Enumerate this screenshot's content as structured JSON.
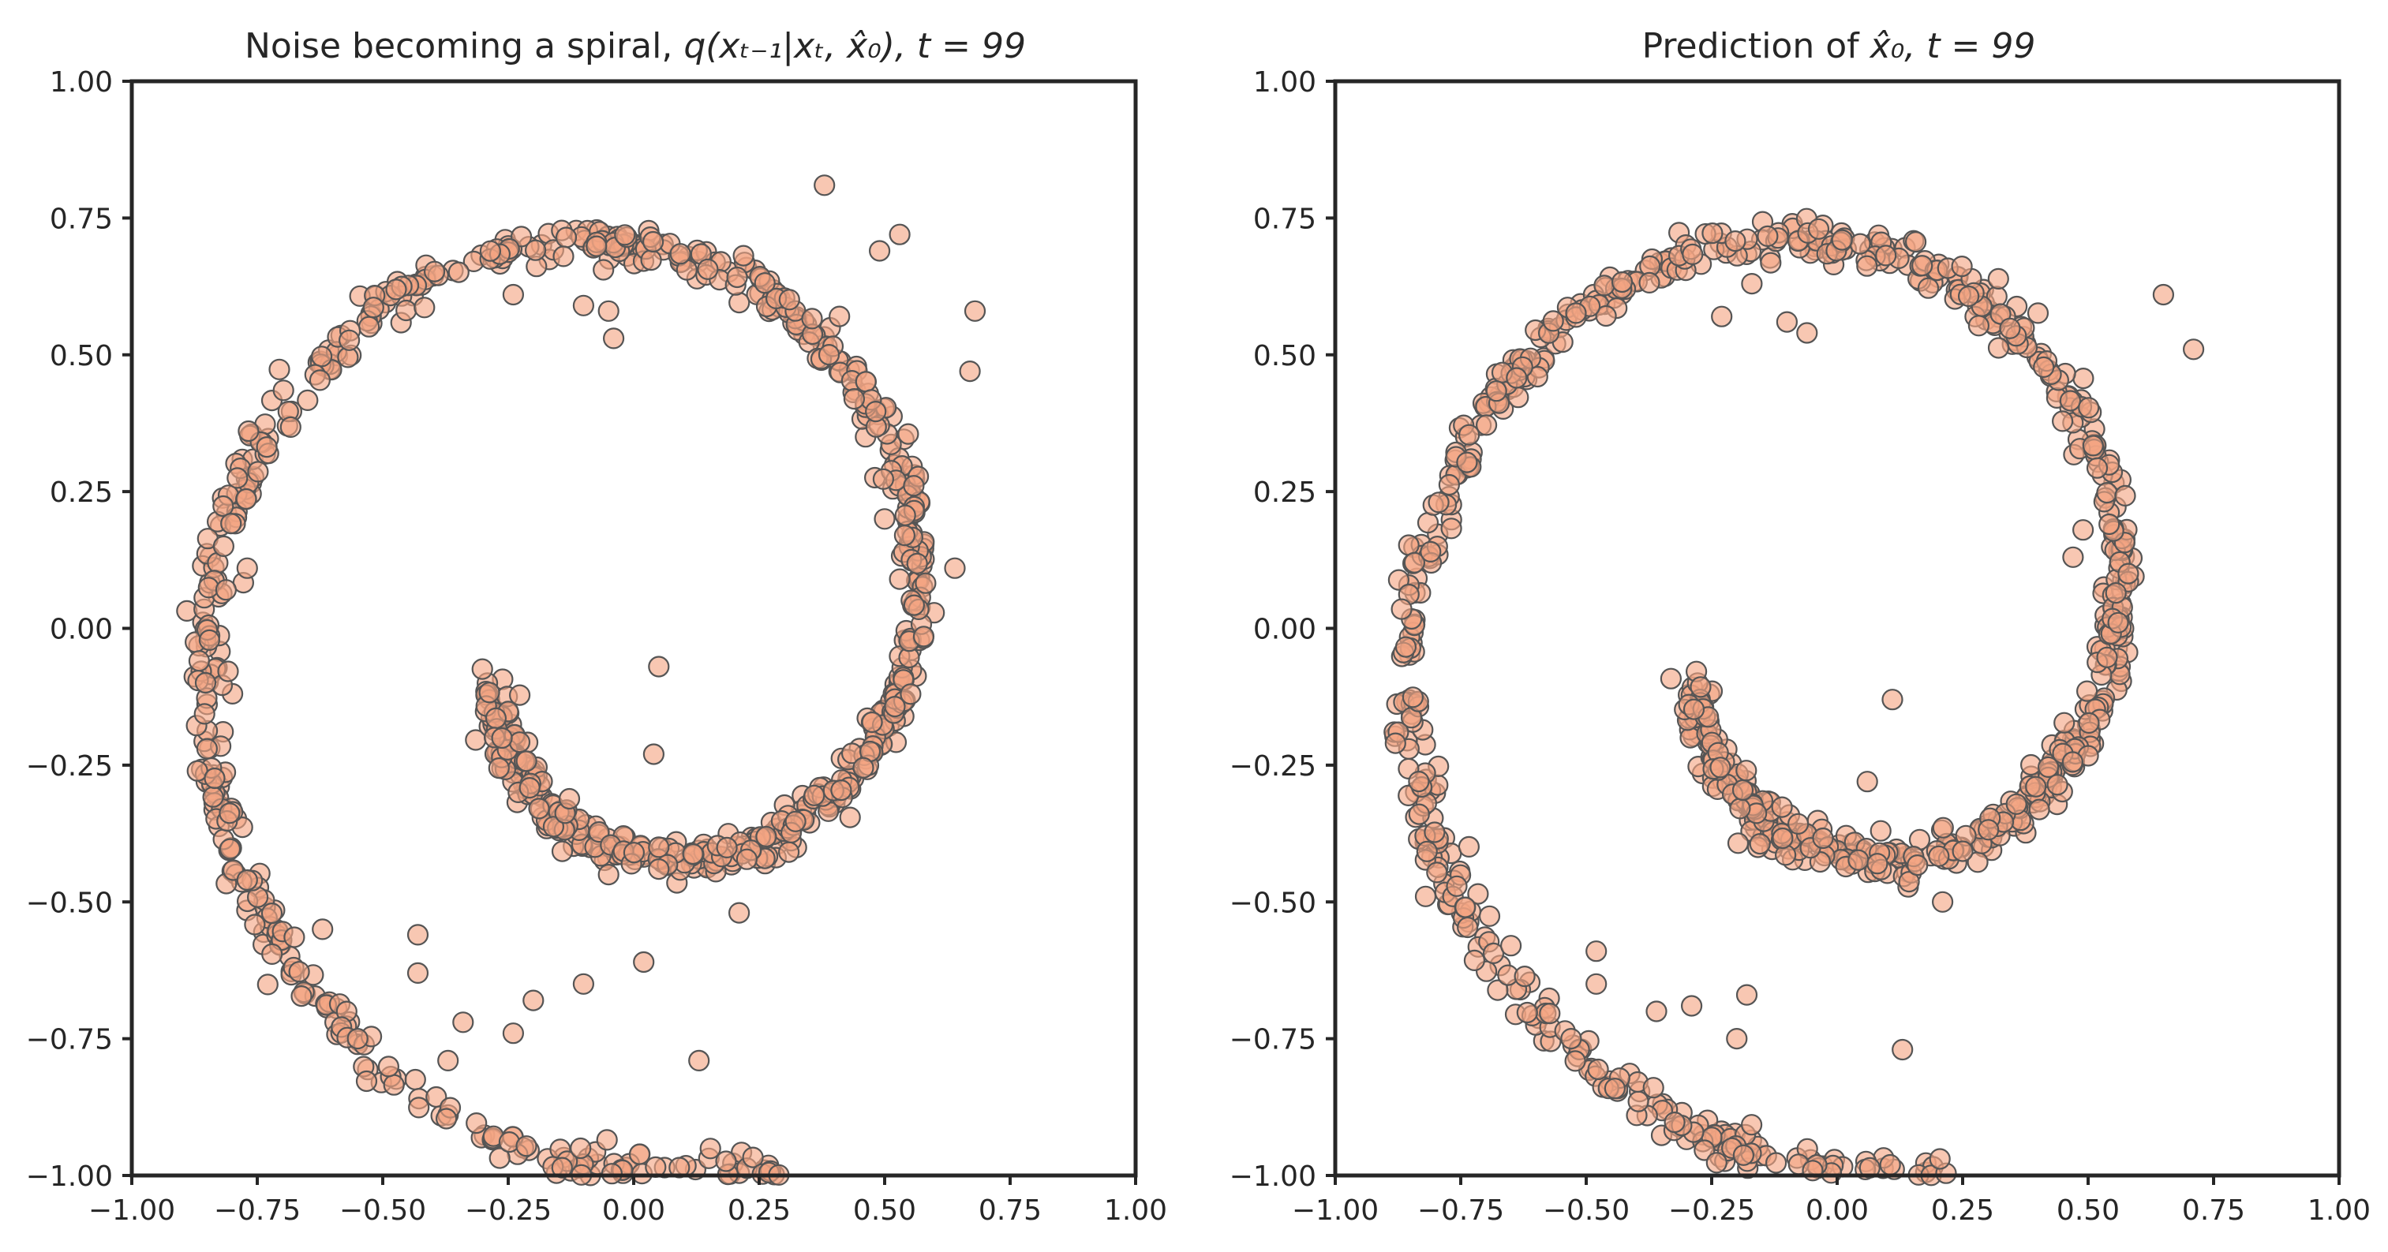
{
  "chart_data": [
    {
      "type": "scatter",
      "title": "Noise becoming a spiral, q(xₜ₋₁|xₜ, x̂₀), t = 99",
      "title_parts": {
        "text": "Noise becoming a spiral, ",
        "math": "q(xₜ₋₁|xₜ, x̂₀), t = 99"
      },
      "xlim": [
        -1.0,
        1.0
      ],
      "ylim": [
        -1.0,
        1.0
      ],
      "xticks": [
        "−1.00",
        "−0.75",
        "−0.50",
        "−0.25",
        "0.00",
        "0.25",
        "0.50",
        "0.75",
        "1.00"
      ],
      "yticks": [
        "1.00",
        "0.75",
        "0.50",
        "0.25",
        "0.00",
        "−0.25",
        "−0.50",
        "−0.75",
        "−1.00"
      ],
      "grid": false,
      "marker_color": "#f4a582",
      "edge_color": "#555555",
      "shape": "spiral",
      "outliers": [
        [
          -0.14,
          0.68
        ],
        [
          -0.24,
          0.61
        ],
        [
          -0.1,
          0.59
        ],
        [
          -0.05,
          0.58
        ],
        [
          -0.04,
          0.53
        ],
        [
          0.5,
          0.2
        ],
        [
          0.54,
          0.17
        ],
        [
          0.64,
          0.11
        ],
        [
          0.53,
          0.09
        ],
        [
          -0.77,
          0.11
        ],
        [
          0.05,
          -0.07
        ],
        [
          -0.85,
          -0.22
        ],
        [
          0.04,
          -0.23
        ],
        [
          -0.77,
          -0.46
        ],
        [
          -0.62,
          -0.55
        ],
        [
          -0.43,
          -0.56
        ],
        [
          -0.43,
          -0.63
        ],
        [
          -0.55,
          -0.75
        ],
        [
          -0.34,
          -0.72
        ],
        [
          -0.37,
          -0.79
        ],
        [
          -0.24,
          -0.74
        ],
        [
          -0.2,
          -0.68
        ],
        [
          0.21,
          -0.52
        ],
        [
          0.13,
          -0.79
        ],
        [
          0.53,
          0.72
        ],
        [
          0.68,
          0.58
        ],
        [
          0.67,
          0.47
        ],
        [
          0.49,
          0.69
        ],
        [
          0.38,
          0.81
        ],
        [
          0.05,
          -0.4
        ],
        [
          0.05,
          -0.44
        ],
        [
          -0.1,
          -0.65
        ],
        [
          0.02,
          -0.61
        ],
        [
          -0.05,
          -0.45
        ]
      ]
    },
    {
      "type": "scatter",
      "title": "Prediction of x̂₀, t = 99",
      "title_parts": {
        "text": "Prediction of ",
        "math": "x̂₀, t = 99"
      },
      "xlim": [
        -1.0,
        1.0
      ],
      "ylim": [
        -1.0,
        1.0
      ],
      "xticks": [
        "−1.00",
        "−0.75",
        "−0.50",
        "−0.25",
        "0.00",
        "0.25",
        "0.50",
        "0.75",
        "1.00"
      ],
      "yticks": [
        "1.00",
        "0.75",
        "0.50",
        "0.25",
        "0.00",
        "−0.25",
        "−0.50",
        "−0.75",
        "−1.00"
      ],
      "grid": false,
      "marker_color": "#f4a582",
      "edge_color": "#555555",
      "shape": "spiral",
      "outliers": [
        [
          -0.17,
          0.63
        ],
        [
          -0.1,
          0.56
        ],
        [
          -0.06,
          0.54
        ],
        [
          -0.23,
          0.57
        ],
        [
          0.49,
          0.18
        ],
        [
          0.47,
          0.13
        ],
        [
          0.58,
          0.1
        ],
        [
          -0.81,
          0.14
        ],
        [
          0.11,
          -0.13
        ],
        [
          -0.88,
          -0.21
        ],
        [
          0.06,
          -0.28
        ],
        [
          -0.82,
          -0.49
        ],
        [
          -0.65,
          -0.58
        ],
        [
          -0.48,
          -0.59
        ],
        [
          -0.48,
          -0.65
        ],
        [
          -0.53,
          -0.75
        ],
        [
          -0.36,
          -0.7
        ],
        [
          -0.2,
          -0.75
        ],
        [
          0.13,
          -0.77
        ],
        [
          0.08,
          -0.43
        ],
        [
          0.71,
          0.51
        ],
        [
          0.65,
          0.61
        ],
        [
          -0.18,
          -0.67
        ],
        [
          -0.29,
          -0.69
        ],
        [
          0.21,
          -0.5
        ]
      ]
    }
  ]
}
